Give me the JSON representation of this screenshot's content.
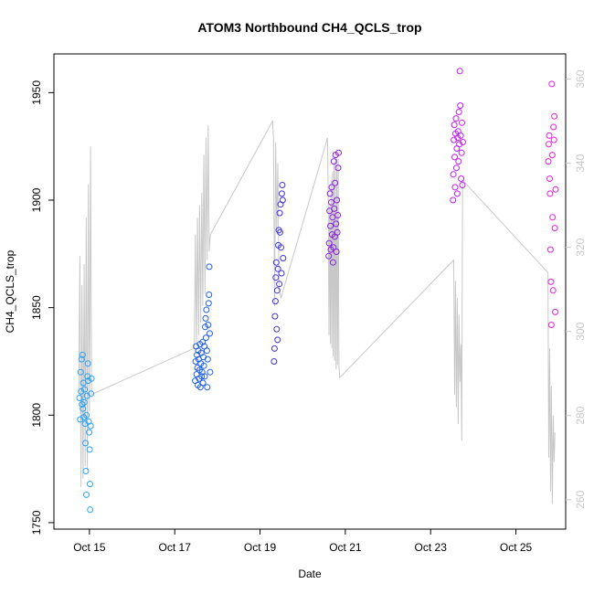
{
  "chart_data": {
    "type": "scatter",
    "title": "ATOM3 Northbound CH4_QCLS_trop",
    "xlabel": "Date",
    "ylabel": "CH4_QCLS_trop",
    "xlim": [
      "2017-10-14T04:00",
      "2017-10-26T04:00"
    ],
    "ylim": [
      1747,
      1968
    ],
    "x_ticks": [
      {
        "label": "Oct 15",
        "date": "2017-10-15"
      },
      {
        "label": "Oct 17",
        "date": "2017-10-17"
      },
      {
        "label": "Oct 19",
        "date": "2017-10-19"
      },
      {
        "label": "Oct 21",
        "date": "2017-10-21"
      },
      {
        "label": "Oct 23",
        "date": "2017-10-23"
      },
      {
        "label": "Oct 25",
        "date": "2017-10-25"
      }
    ],
    "y_ticks": [
      1750,
      1800,
      1850,
      1900,
      1950
    ],
    "secondary_axis": {
      "side": "right",
      "color": "#c8c8c8",
      "ylim": [
        253,
        366
      ],
      "ticks": [
        260,
        280,
        300,
        320,
        340,
        360
      ]
    },
    "grid": false,
    "legend": "none",
    "series": [
      {
        "color": "#29a3f5",
        "points": [
          [
            "2017-10-14T18:24",
            1808
          ],
          [
            "2017-10-14T18:50",
            1798
          ],
          [
            "2017-10-14T19:05",
            1820
          ],
          [
            "2017-10-14T19:20",
            1811
          ],
          [
            "2017-10-14T19:36",
            1826
          ],
          [
            "2017-10-14T19:50",
            1805
          ],
          [
            "2017-10-14T20:05",
            1828
          ],
          [
            "2017-10-14T20:19",
            1803
          ],
          [
            "2017-10-14T20:34",
            1815
          ],
          [
            "2017-10-14T20:48",
            1799
          ],
          [
            "2017-10-14T21:03",
            1806
          ],
          [
            "2017-10-14T21:17",
            1812
          ],
          [
            "2017-10-14T21:31",
            1796
          ],
          [
            "2017-10-14T21:46",
            1787
          ],
          [
            "2017-10-14T22:01",
            1774
          ],
          [
            "2017-10-14T22:15",
            1763
          ],
          [
            "2017-10-14T22:22",
            1800
          ],
          [
            "2017-10-14T22:38",
            1809
          ],
          [
            "2017-10-14T22:52",
            1818
          ],
          [
            "2017-10-14T23:07",
            1824
          ],
          [
            "2017-10-14T23:20",
            1816
          ],
          [
            "2017-10-14T23:35",
            1797
          ],
          [
            "2017-10-14T23:50",
            1792
          ],
          [
            "2017-10-15T00:05",
            1784
          ],
          [
            "2017-10-15T00:19",
            1768
          ],
          [
            "2017-10-15T00:26",
            1756
          ],
          [
            "2017-10-15T00:40",
            1795
          ],
          [
            "2017-10-15T00:55",
            1810
          ],
          [
            "2017-10-15T01:09",
            1817
          ]
        ]
      },
      {
        "color": "#1f5fe6",
        "points": [
          [
            "2017-10-17T11:31",
            1816
          ],
          [
            "2017-10-17T11:47",
            1825
          ],
          [
            "2017-10-17T12:01",
            1832
          ],
          [
            "2017-10-17T12:16",
            1819
          ],
          [
            "2017-10-17T12:30",
            1828
          ],
          [
            "2017-10-17T12:45",
            1822
          ],
          [
            "2017-10-17T13:00",
            1814
          ],
          [
            "2017-10-17T13:14",
            1830
          ],
          [
            "2017-10-17T13:29",
            1826
          ],
          [
            "2017-10-17T13:43",
            1817
          ],
          [
            "2017-10-17T13:58",
            1821
          ],
          [
            "2017-10-17T14:12",
            1833
          ],
          [
            "2017-10-17T14:27",
            1813
          ],
          [
            "2017-10-17T14:41",
            1824
          ],
          [
            "2017-10-17T14:56",
            1829
          ],
          [
            "2017-10-17T15:10",
            1818
          ],
          [
            "2017-10-17T15:25",
            1820
          ],
          [
            "2017-10-17T15:40",
            1834
          ],
          [
            "2017-10-17T15:54",
            1815
          ],
          [
            "2017-10-17T16:09",
            1827
          ],
          [
            "2017-10-17T16:23",
            1823
          ],
          [
            "2017-10-17T16:38",
            1832
          ],
          [
            "2017-10-17T16:52",
            1818
          ],
          [
            "2017-10-17T17:07",
            1841
          ],
          [
            "2017-10-17T17:21",
            1845
          ],
          [
            "2017-10-17T17:36",
            1836
          ],
          [
            "2017-10-17T17:50",
            1849
          ],
          [
            "2017-10-17T18:05",
            1830
          ],
          [
            "2017-10-17T18:19",
            1813
          ],
          [
            "2017-10-17T18:34",
            1826
          ],
          [
            "2017-10-17T18:48",
            1842
          ],
          [
            "2017-10-17T19:03",
            1852
          ],
          [
            "2017-10-17T19:17",
            1856
          ],
          [
            "2017-10-17T19:26",
            1869
          ],
          [
            "2017-10-17T19:40",
            1838
          ],
          [
            "2017-10-17T19:55",
            1820
          ]
        ]
      },
      {
        "color": "#3d33d9",
        "points": [
          [
            "2017-10-19T07:55",
            1825
          ],
          [
            "2017-10-19T08:10",
            1831
          ],
          [
            "2017-10-19T08:24",
            1846
          ],
          [
            "2017-10-19T08:39",
            1853
          ],
          [
            "2017-10-19T08:53",
            1864
          ],
          [
            "2017-10-19T09:08",
            1871
          ],
          [
            "2017-10-19T09:22",
            1840
          ],
          [
            "2017-10-19T09:37",
            1858
          ],
          [
            "2017-10-19T09:51",
            1835
          ],
          [
            "2017-10-19T10:06",
            1868
          ],
          [
            "2017-10-19T10:20",
            1879
          ],
          [
            "2017-10-19T10:35",
            1886
          ],
          [
            "2017-10-19T10:49",
            1861
          ],
          [
            "2017-10-19T11:04",
            1894
          ],
          [
            "2017-10-19T11:18",
            1885
          ],
          [
            "2017-10-19T11:33",
            1898
          ],
          [
            "2017-10-19T11:47",
            1878
          ],
          [
            "2017-10-19T12:02",
            1866
          ],
          [
            "2017-10-19T12:16",
            1903
          ],
          [
            "2017-10-19T12:31",
            1907
          ],
          [
            "2017-10-19T12:45",
            1900
          ],
          [
            "2017-10-19T13:00",
            1873
          ]
        ]
      },
      {
        "color": "#8a1ee0",
        "points": [
          [
            "2017-10-20T14:38",
            1874
          ],
          [
            "2017-10-20T14:53",
            1880
          ],
          [
            "2017-10-20T15:07",
            1895
          ],
          [
            "2017-10-20T15:22",
            1903
          ],
          [
            "2017-10-20T15:36",
            1888
          ],
          [
            "2017-10-20T15:51",
            1877
          ],
          [
            "2017-10-20T16:05",
            1899
          ],
          [
            "2017-10-20T16:20",
            1906
          ],
          [
            "2017-10-20T16:34",
            1884
          ],
          [
            "2017-10-20T16:49",
            1892
          ],
          [
            "2017-10-20T17:03",
            1871
          ],
          [
            "2017-10-20T17:18",
            1878
          ],
          [
            "2017-10-20T17:32",
            1918
          ],
          [
            "2017-10-20T17:47",
            1896
          ],
          [
            "2017-10-20T18:01",
            1883
          ],
          [
            "2017-10-20T18:16",
            1908
          ],
          [
            "2017-10-20T18:30",
            1921
          ],
          [
            "2017-10-20T18:45",
            1889
          ],
          [
            "2017-10-20T18:59",
            1876
          ],
          [
            "2017-10-20T19:14",
            1900
          ],
          [
            "2017-10-20T19:28",
            1885
          ],
          [
            "2017-10-20T19:43",
            1893
          ],
          [
            "2017-10-20T19:57",
            1915
          ],
          [
            "2017-10-20T20:12",
            1922
          ]
        ]
      },
      {
        "color": "#c01ef0",
        "points": [
          [
            "2017-10-23T12:34",
            1900
          ],
          [
            "2017-10-23T12:49",
            1912
          ],
          [
            "2017-10-23T13:03",
            1928
          ],
          [
            "2017-10-23T13:18",
            1935
          ],
          [
            "2017-10-23T13:32",
            1920
          ],
          [
            "2017-10-23T13:47",
            1906
          ],
          [
            "2017-10-23T14:01",
            1931
          ],
          [
            "2017-10-23T14:16",
            1938
          ],
          [
            "2017-10-23T14:30",
            1915
          ],
          [
            "2017-10-23T14:45",
            1924
          ],
          [
            "2017-10-23T14:59",
            1903
          ],
          [
            "2017-10-23T15:14",
            1929
          ],
          [
            "2017-10-23T15:28",
            1932
          ],
          [
            "2017-10-23T15:43",
            1918
          ],
          [
            "2017-10-23T15:57",
            1941
          ],
          [
            "2017-10-23T16:12",
            1926
          ],
          [
            "2017-10-23T16:26",
            1960
          ],
          [
            "2017-10-23T16:41",
            1944
          ],
          [
            "2017-10-23T16:55",
            1930
          ],
          [
            "2017-10-23T17:10",
            1910
          ],
          [
            "2017-10-23T17:24",
            1922
          ],
          [
            "2017-10-23T17:39",
            1936
          ],
          [
            "2017-10-23T17:53",
            1907
          ],
          [
            "2017-10-23T18:08",
            1927
          ]
        ]
      },
      {
        "color": "#e61ee0",
        "points": [
          [
            "2017-10-25T18:15",
            1918
          ],
          [
            "2017-10-25T18:30",
            1926
          ],
          [
            "2017-10-25T18:44",
            1930
          ],
          [
            "2017-10-25T18:59",
            1910
          ],
          [
            "2017-10-25T19:13",
            1903
          ],
          [
            "2017-10-25T19:28",
            1877
          ],
          [
            "2017-10-25T19:42",
            1862
          ],
          [
            "2017-10-25T19:57",
            1842
          ],
          [
            "2017-10-25T20:11",
            1954
          ],
          [
            "2017-10-25T20:26",
            1921
          ],
          [
            "2017-10-25T20:40",
            1892
          ],
          [
            "2017-10-25T20:55",
            1858
          ],
          [
            "2017-10-25T21:09",
            1934
          ],
          [
            "2017-10-25T21:24",
            1928
          ],
          [
            "2017-10-25T21:38",
            1939
          ],
          [
            "2017-10-25T21:53",
            1887
          ],
          [
            "2017-10-25T22:07",
            1848
          ],
          [
            "2017-10-25T22:22",
            1905
          ]
        ]
      }
    ],
    "secondary_line": {
      "color": "#c8c8c8",
      "axis": "right",
      "points": [
        [
          "2017-10-14T18:00",
          285
        ],
        [
          "2017-10-14T18:36",
          318
        ],
        [
          "2017-10-14T19:12",
          263
        ],
        [
          "2017-10-14T19:48",
          311
        ],
        [
          "2017-10-14T20:24",
          265
        ],
        [
          "2017-10-14T21:00",
          316
        ],
        [
          "2017-10-14T21:36",
          268
        ],
        [
          "2017-10-14T22:12",
          327
        ],
        [
          "2017-10-14T22:48",
          267
        ],
        [
          "2017-10-14T23:24",
          335
        ],
        [
          "2017-10-15T00:00",
          281
        ],
        [
          "2017-10-15T00:36",
          344
        ],
        [
          "2017-10-15T01:12",
          285
        ],
        [
          "2017-10-17T11:00",
          296
        ],
        [
          "2017-10-17T11:36",
          323
        ],
        [
          "2017-10-17T12:12",
          297
        ],
        [
          "2017-10-17T12:48",
          327
        ],
        [
          "2017-10-17T13:24",
          299
        ],
        [
          "2017-10-17T14:00",
          330
        ],
        [
          "2017-10-17T14:36",
          302
        ],
        [
          "2017-10-17T15:12",
          333
        ],
        [
          "2017-10-17T15:48",
          306
        ],
        [
          "2017-10-17T16:24",
          342
        ],
        [
          "2017-10-17T17:00",
          309
        ],
        [
          "2017-10-17T17:36",
          346
        ],
        [
          "2017-10-17T18:12",
          317
        ],
        [
          "2017-10-17T18:48",
          349
        ],
        [
          "2017-10-17T19:24",
          319
        ],
        [
          "2017-10-17T20:00",
          323
        ],
        [
          "2017-10-19T07:00",
          350
        ],
        [
          "2017-10-19T07:36",
          346
        ],
        [
          "2017-10-19T08:12",
          306
        ],
        [
          "2017-10-19T08:48",
          345
        ],
        [
          "2017-10-19T09:24",
          324
        ],
        [
          "2017-10-19T10:00",
          340
        ],
        [
          "2017-10-19T10:36",
          312
        ],
        [
          "2017-10-19T11:12",
          309
        ],
        [
          "2017-10-19T11:48",
          308
        ],
        [
          "2017-10-20T14:00",
          346
        ],
        [
          "2017-10-20T14:24",
          331
        ],
        [
          "2017-10-20T14:48",
          299
        ],
        [
          "2017-10-20T15:12",
          330
        ],
        [
          "2017-10-20T15:36",
          297
        ],
        [
          "2017-10-20T16:00",
          336
        ],
        [
          "2017-10-20T16:24",
          296
        ],
        [
          "2017-10-20T16:48",
          338
        ],
        [
          "2017-10-20T17:12",
          294
        ],
        [
          "2017-10-20T17:36",
          340
        ],
        [
          "2017-10-20T18:00",
          293
        ],
        [
          "2017-10-20T18:24",
          342
        ],
        [
          "2017-10-20T18:48",
          291
        ],
        [
          "2017-10-20T19:12",
          341
        ],
        [
          "2017-10-20T19:36",
          292
        ],
        [
          "2017-10-20T20:00",
          341
        ],
        [
          "2017-10-20T20:24",
          292
        ],
        [
          "2017-10-20T20:48",
          289
        ],
        [
          "2017-10-23T13:00",
          317
        ],
        [
          "2017-10-23T13:30",
          285
        ],
        [
          "2017-10-23T14:00",
          312
        ],
        [
          "2017-10-23T14:30",
          282
        ],
        [
          "2017-10-23T15:00",
          308
        ],
        [
          "2017-10-23T15:30",
          278
        ],
        [
          "2017-10-23T16:00",
          304
        ],
        [
          "2017-10-23T16:30",
          288
        ],
        [
          "2017-10-23T17:00",
          297
        ],
        [
          "2017-10-23T17:30",
          274
        ],
        [
          "2017-10-23T18:00",
          336
        ],
        [
          "2017-10-25T18:00",
          314
        ],
        [
          "2017-10-25T18:30",
          270
        ],
        [
          "2017-10-25T19:00",
          296
        ],
        [
          "2017-10-25T19:30",
          262
        ],
        [
          "2017-10-25T20:00",
          287
        ],
        [
          "2017-10-25T20:30",
          259
        ],
        [
          "2017-10-25T21:00",
          280
        ],
        [
          "2017-10-25T21:30",
          269
        ],
        [
          "2017-10-25T22:00",
          276
        ]
      ]
    }
  }
}
